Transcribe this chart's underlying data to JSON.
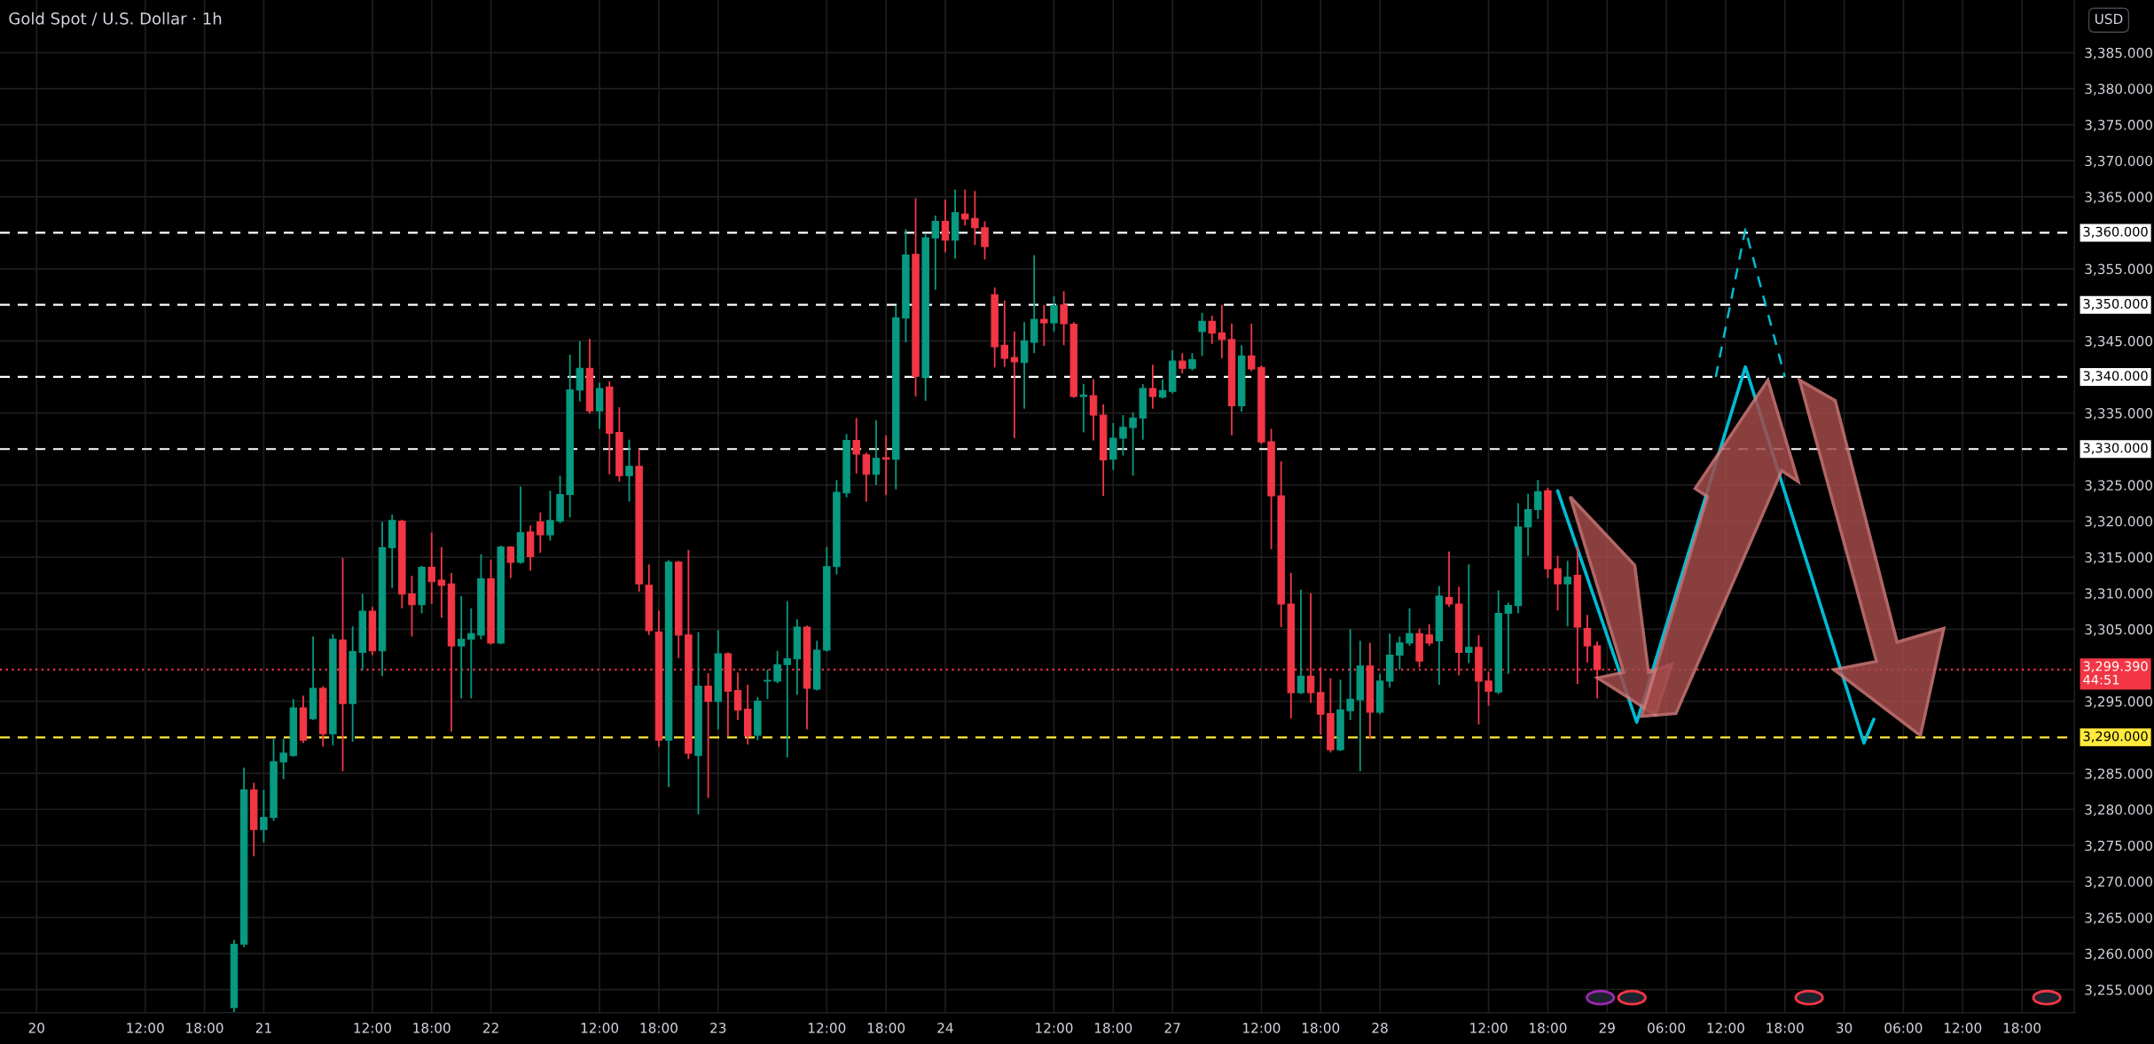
{
  "chart_data": {
    "type": "candlestick",
    "title": "Gold Spot / U.S. Dollar · 1h",
    "categories": [
      null,
      null,
      null,
      "20",
      null,
      null,
      null,
      null,
      null,
      null,
      null,
      null,
      null,
      null,
      "12:00",
      null,
      null,
      null,
      null,
      null,
      "18:00",
      null,
      null,
      null,
      null,
      null,
      "21",
      null,
      null,
      null,
      null,
      null,
      null,
      null,
      null,
      null,
      null,
      "12:00",
      null,
      null,
      null,
      null,
      null,
      "18:00",
      null,
      null,
      null,
      null,
      null,
      "22",
      null,
      null,
      null,
      null,
      null,
      null,
      null,
      null,
      null,
      null,
      "12:00",
      null,
      null,
      null,
      null,
      null,
      "18:00",
      null,
      null,
      null,
      null,
      null,
      "23",
      null,
      null,
      null,
      null,
      null,
      null,
      null,
      null,
      null,
      null,
      "12:00",
      null,
      null,
      null,
      null,
      null,
      "18:00",
      null,
      null,
      null,
      null,
      null,
      "24",
      null,
      null,
      null,
      null,
      null,
      null,
      null,
      null,
      null,
      null,
      "12:00",
      null,
      null,
      null,
      null,
      null,
      "18:00",
      null,
      null,
      null,
      null,
      null,
      "27",
      null,
      null,
      null,
      null,
      null,
      null,
      null,
      null,
      "12:00",
      null,
      null,
      null,
      null,
      null,
      "18:00",
      null,
      null,
      null,
      null,
      null,
      "28",
      null,
      null,
      null,
      null,
      null,
      null,
      null,
      null,
      null,
      null,
      "12:00",
      null,
      null,
      null,
      null,
      null,
      "18:00",
      null,
      null,
      null,
      null,
      null,
      "29",
      null,
      null,
      null,
      null,
      null,
      "06:00",
      null,
      null,
      null,
      null,
      null,
      "12:00",
      null,
      null,
      null,
      null,
      null,
      "18:00",
      null,
      null,
      null,
      null,
      null,
      "30",
      null,
      null,
      null,
      null,
      null,
      "06:00",
      null,
      null,
      null,
      null,
      null,
      "12:00",
      null,
      null,
      null,
      null,
      null,
      "18:00",
      null,
      null,
      null,
      null,
      null
    ],
    "series": [
      {
        "colors": [
          null,
          null,
          null,
          null,
          null,
          null,
          null,
          null,
          null,
          null,
          null,
          null,
          null,
          null,
          null,
          null,
          null,
          null,
          null,
          null,
          null,
          null,
          null,
          "#089981",
          "#089981",
          "#f23645",
          "#089981",
          "#089981",
          "#089981",
          "#089981",
          "#f23645",
          "#089981",
          "#f23645",
          "#089981",
          "#f23645",
          "#089981",
          "#089981",
          "#f23645",
          "#089981",
          "#089981",
          "#f23645",
          "#f23645",
          "#089981",
          "#f23645",
          "#f23645",
          "#f23645",
          "#089981",
          "#089981",
          "#089981",
          "#f23645",
          "#089981",
          "#f23645",
          "#089981",
          "#f23645",
          "#f23645",
          "#089981",
          "#089981",
          "#089981",
          "#089981",
          "#f23645",
          "#089981",
          "#f23645",
          "#f23645",
          "#089981",
          "#f23645",
          "#f23645",
          "#f23645",
          "#089981",
          "#f23645",
          "#f23645",
          "#089981",
          "#f23645",
          "#089981",
          "#f23645",
          "#f23645",
          "#f23645",
          "#089981",
          "#089981",
          "#089981",
          "#089981",
          "#089981",
          "#f23645",
          "#089981",
          "#089981",
          "#089981",
          "#089981",
          "#f23645",
          "#f23645",
          "#089981",
          "#f23645",
          "#089981",
          "#089981",
          "#f23645",
          "#089981",
          "#089981",
          "#f23645",
          "#089981",
          "#f23645",
          "#f23645",
          "#f23645",
          "#f23645",
          "#f23645",
          "#f23645",
          "#089981",
          "#089981",
          "#f23645",
          "#089981",
          "#f23645",
          "#f23645",
          "#089981",
          "#f23645",
          "#f23645",
          "#089981",
          "#089981",
          "#089981",
          "#089981",
          "#f23645",
          "#089981",
          "#089981",
          "#f23645",
          "#089981",
          "#089981",
          "#f23645",
          "#f23645",
          "#f23645",
          "#089981",
          "#f23645",
          "#f23645",
          "#f23645",
          "#f23645",
          "#f23645",
          "#089981",
          "#f23645",
          "#f23645",
          "#f23645",
          "#089981",
          "#089981",
          "#089981",
          "#f23645",
          "#089981",
          "#089981",
          "#089981",
          "#089981",
          "#f23645",
          "#f23645",
          "#089981",
          "#f23645",
          "#f23645",
          "#089981",
          "#f23645",
          "#f23645",
          "#089981",
          "#089981",
          "#089981",
          "#089981",
          "#089981",
          "#f23645",
          "#f23645",
          "#089981",
          "#f23645",
          "#f23645",
          "#f23645",
          null,
          null,
          null,
          null,
          null,
          null,
          null,
          null,
          null,
          null,
          null,
          null,
          null,
          null,
          null,
          null,
          null,
          null,
          null,
          null,
          null,
          null,
          null,
          null,
          null,
          null,
          null,
          null,
          null,
          null,
          null,
          null,
          null,
          null,
          null,
          null,
          null,
          null,
          null,
          null,
          null,
          null,
          null,
          null,
          null,
          null,
          null,
          null
        ],
        "ohlc": [
          null,
          null,
          null,
          null,
          null,
          null,
          null,
          null,
          null,
          null,
          null,
          null,
          null,
          null,
          null,
          null,
          null,
          null,
          null,
          null,
          null,
          null,
          null,
          [
            3252.5,
            3261.9,
            3251.9,
            3261.3
          ],
          [
            3261.3,
            3285.8,
            3260.9,
            3282.7
          ],
          [
            3282.7,
            3283.7,
            3273.5,
            3277.2
          ],
          [
            3277.2,
            3282.7,
            3275.4,
            3278.9
          ],
          [
            3278.9,
            3289.8,
            3278.4,
            3286.6
          ],
          [
            3286.6,
            3289.8,
            3284.2,
            3287.8
          ],
          [
            3287.5,
            3295.3,
            3287.3,
            3294.1
          ],
          [
            3294.1,
            3295.8,
            3289.2,
            3289.6
          ],
          [
            3292.6,
            3304.0,
            3292.4,
            3296.8
          ],
          [
            3296.8,
            3297.1,
            3288.7,
            3290.5
          ],
          [
            3290.5,
            3304.3,
            3288.9,
            3303.6
          ],
          [
            3303.5,
            3314.9,
            3285.3,
            3294.7
          ],
          [
            3294.7,
            3305.4,
            3289.4,
            3301.9
          ],
          [
            3301.8,
            3309.9,
            3299.3,
            3307.5
          ],
          [
            3307.5,
            3308.1,
            3301.4,
            3302.0
          ],
          [
            3302.0,
            3319.9,
            3298.5,
            3316.3
          ],
          [
            3316.3,
            3320.9,
            3310.7,
            3320.1
          ],
          [
            3320.0,
            3320.2,
            3307.9,
            3309.9
          ],
          [
            3309.9,
            3312.4,
            3304.0,
            3308.4
          ],
          [
            3308.4,
            3313.8,
            3307.2,
            3313.6
          ],
          [
            3313.6,
            3318.4,
            3308.5,
            3311.6
          ],
          [
            3311.8,
            3316.4,
            3306.6,
            3311.1
          ],
          [
            3311.3,
            3312.8,
            3290.8,
            3302.7
          ],
          [
            3302.7,
            3309.6,
            3295.4,
            3303.6
          ],
          [
            3303.6,
            3307.9,
            3295.4,
            3304.4
          ],
          [
            3304.2,
            3315.4,
            3303.6,
            3312.0
          ],
          [
            3312.0,
            3314.6,
            3302.9,
            3303.1
          ],
          [
            3303.1,
            3316.6,
            3302.9,
            3316.4
          ],
          [
            3316.4,
            3316.5,
            3312.1,
            3314.3
          ],
          [
            3314.3,
            3324.8,
            3314.1,
            3318.4
          ],
          [
            3318.5,
            3319.4,
            3313.1,
            3315.1
          ],
          [
            3319.9,
            3321.2,
            3315.6,
            3318.1
          ],
          [
            3318.1,
            3324.2,
            3317.3,
            3320.1
          ],
          [
            3320.0,
            3326.3,
            3319.7,
            3323.7
          ],
          [
            3323.7,
            3343.1,
            3320.5,
            3338.2
          ],
          [
            3338.2,
            3345.0,
            3336.6,
            3341.2
          ],
          [
            3341.2,
            3345.3,
            3334.9,
            3335.3
          ],
          [
            3335.3,
            3339.2,
            3332.8,
            3338.4
          ],
          [
            3338.6,
            3339.4,
            3326.5,
            3332.2
          ],
          [
            3332.3,
            3335.8,
            3325.5,
            3326.3
          ],
          [
            3326.3,
            3331.3,
            3322.7,
            3327.6
          ],
          [
            3327.6,
            3330.0,
            3310.2,
            3311.3
          ],
          [
            3311.1,
            3314.0,
            3304.2,
            3304.8
          ],
          [
            3304.6,
            3307.6,
            3288.7,
            3289.6
          ],
          [
            3289.6,
            3314.6,
            3283.1,
            3314.3
          ],
          [
            3314.3,
            3314.5,
            3301.0,
            3304.2
          ],
          [
            3304.2,
            3316.0,
            3287.0,
            3287.8
          ],
          [
            3287.5,
            3304.6,
            3279.3,
            3297.1
          ],
          [
            3297.1,
            3298.9,
            3281.6,
            3295.0
          ],
          [
            3295.0,
            3304.9,
            3291.1,
            3301.6
          ],
          [
            3301.6,
            3301.8,
            3290.2,
            3296.4
          ],
          [
            3296.5,
            3299.0,
            3292.4,
            3293.8
          ],
          [
            3293.9,
            3297.3,
            3289.0,
            3290.2
          ],
          [
            3290.3,
            3295.6,
            3289.6,
            3295.0
          ],
          [
            3297.8,
            3299.4,
            3295.3,
            3297.9
          ],
          [
            3297.8,
            3302.0,
            3297.5,
            3300.1
          ],
          [
            3300.1,
            3308.9,
            3287.2,
            3300.9
          ],
          [
            3300.9,
            3306.4,
            3295.9,
            3305.3
          ],
          [
            3305.3,
            3305.5,
            3291.1,
            3296.8
          ],
          [
            3296.7,
            3303.4,
            3296.5,
            3302.1
          ],
          [
            3302.1,
            3316.4,
            3301.9,
            3313.7
          ],
          [
            3313.7,
            3325.7,
            3312.6,
            3324.0
          ],
          [
            3323.9,
            3332.1,
            3323.3,
            3331.2
          ],
          [
            3331.2,
            3334.3,
            3326.6,
            3329.3
          ],
          [
            3329.2,
            3329.5,
            3322.7,
            3326.5
          ],
          [
            3326.5,
            3334.0,
            3325.0,
            3328.7
          ],
          [
            3328.8,
            3331.9,
            3323.6,
            3328.6
          ],
          [
            3328.6,
            3349.9,
            3324.4,
            3348.2
          ],
          [
            3348.2,
            3360.5,
            3344.8,
            3356.9
          ],
          [
            3357.0,
            3364.8,
            3337.3,
            3340.1
          ],
          [
            3339.9,
            3359.9,
            3336.7,
            3359.3
          ],
          [
            3359.3,
            3362.4,
            3352.1,
            3361.6
          ],
          [
            3361.6,
            3364.6,
            3357.3,
            3359.0
          ],
          [
            3359.0,
            3366.0,
            3356.4,
            3362.8
          ],
          [
            3362.6,
            3366.0,
            3361.0,
            3361.9
          ],
          [
            3362.0,
            3365.8,
            3358.3,
            3360.7
          ],
          [
            3360.7,
            3361.6,
            3356.3,
            3358.1
          ],
          [
            3351.4,
            3352.4,
            3341.3,
            3344.2
          ],
          [
            3344.4,
            3350.6,
            3341.4,
            3342.6
          ],
          [
            3342.7,
            3346.3,
            3331.5,
            3342.1
          ],
          [
            3342.0,
            3347.6,
            3335.6,
            3345.0
          ],
          [
            3344.8,
            3356.9,
            3343.3,
            3348.0
          ],
          [
            3348.0,
            3350.0,
            3344.3,
            3347.5
          ],
          [
            3347.5,
            3351.2,
            3346.3,
            3349.9
          ],
          [
            3350.0,
            3351.9,
            3344.4,
            3347.4
          ],
          [
            3347.3,
            3347.6,
            3337.1,
            3337.3
          ],
          [
            3337.3,
            3339.0,
            3332.3,
            3337.5
          ],
          [
            3337.4,
            3339.7,
            3331.2,
            3334.7
          ],
          [
            3334.7,
            3336.2,
            3323.5,
            3328.5
          ],
          [
            3328.6,
            3333.6,
            3327.1,
            3331.5
          ],
          [
            3331.5,
            3334.7,
            3329.1,
            3333.0
          ],
          [
            3333.0,
            3335.1,
            3326.3,
            3334.3
          ],
          [
            3334.3,
            3339.0,
            3331.3,
            3338.4
          ],
          [
            3338.4,
            3341.7,
            3335.6,
            3337.3
          ],
          [
            3337.2,
            3339.7,
            3337.0,
            3338.1
          ],
          [
            3338.0,
            3343.7,
            3337.7,
            3342.2
          ],
          [
            3342.2,
            3343.3,
            3340.5,
            3341.2
          ],
          [
            3341.2,
            3343.3,
            3340.9,
            3342.4
          ],
          [
            3346.3,
            3348.9,
            3342.9,
            3347.7
          ],
          [
            3347.7,
            3348.5,
            3344.6,
            3346.1
          ],
          [
            3346.1,
            3350.0,
            3342.6,
            3345.2
          ],
          [
            3345.2,
            3347.4,
            3331.9,
            3336.0
          ],
          [
            3336.0,
            3344.4,
            3335.2,
            3342.9
          ],
          [
            3342.9,
            3347.4,
            3340.8,
            3341.1
          ],
          [
            3341.3,
            3341.6,
            3330.7,
            3331.0
          ],
          [
            3331.0,
            3332.8,
            3316.1,
            3323.5
          ],
          [
            3323.5,
            3328.3,
            3305.3,
            3308.5
          ],
          [
            3308.5,
            3312.8,
            3292.6,
            3296.2
          ],
          [
            3296.2,
            3310.5,
            3296.0,
            3298.5
          ],
          [
            3298.5,
            3310.0,
            3294.8,
            3296.2
          ],
          [
            3296.2,
            3299.7,
            3290.4,
            3293.2
          ],
          [
            3293.3,
            3298.2,
            3287.9,
            3288.3
          ],
          [
            3288.3,
            3298.0,
            3288.1,
            3293.8
          ],
          [
            3293.7,
            3305.0,
            3292.4,
            3295.3
          ],
          [
            3295.2,
            3303.4,
            3285.3,
            3299.9
          ],
          [
            3299.9,
            3303.1,
            3289.8,
            3293.5
          ],
          [
            3293.5,
            3298.8,
            3293.2,
            3297.8
          ],
          [
            3297.8,
            3304.4,
            3296.9,
            3301.4
          ],
          [
            3301.4,
            3304.0,
            3299.4,
            3303.1
          ],
          [
            3303.1,
            3307.9,
            3302.7,
            3304.4
          ],
          [
            3304.4,
            3305.1,
            3299.7,
            3300.6
          ],
          [
            3304.2,
            3305.7,
            3302.7,
            3303.1
          ],
          [
            3303.4,
            3311.0,
            3297.3,
            3309.6
          ],
          [
            3309.4,
            3315.8,
            3308.1,
            3308.5
          ],
          [
            3308.5,
            3310.9,
            3298.6,
            3301.8
          ],
          [
            3301.8,
            3314.0,
            3300.3,
            3302.5
          ],
          [
            3302.5,
            3304.2,
            3291.8,
            3297.8
          ],
          [
            3297.8,
            3299.1,
            3294.4,
            3296.4
          ],
          [
            3296.3,
            3310.4,
            3296.0,
            3307.2
          ],
          [
            3307.2,
            3308.7,
            3298.8,
            3308.3
          ],
          [
            3308.3,
            3322.5,
            3307.2,
            3319.2
          ],
          [
            3319.2,
            3323.8,
            3315.2,
            3321.6
          ],
          [
            3321.6,
            3325.7,
            3320.3,
            3324.1
          ],
          [
            3324.2,
            3324.6,
            3312.1,
            3313.4
          ],
          [
            3313.4,
            3315.2,
            3307.6,
            3311.3
          ],
          [
            3311.3,
            3314.5,
            3305.4,
            3312.2
          ],
          [
            3312.5,
            3316.5,
            3297.4,
            3305.3
          ],
          [
            3305.1,
            3307.0,
            3300.4,
            3302.7
          ],
          [
            3302.7,
            3303.3,
            3295.4,
            3299.4
          ],
          null,
          null,
          null,
          null,
          null,
          null,
          null,
          null,
          null,
          null,
          null,
          null,
          null,
          null,
          null,
          null,
          null,
          null,
          null,
          null,
          null,
          null,
          null,
          null,
          null,
          null,
          null,
          null,
          null,
          null,
          null,
          null,
          null,
          null,
          null,
          null,
          null,
          null,
          null,
          null,
          null,
          null,
          null,
          null,
          null,
          null,
          null,
          null
        ]
      },
      {
        "type": "line",
        "color": "#00bcd4",
        "line_style": "solid",
        "values": [
          null,
          null,
          null,
          null,
          null,
          null,
          null,
          null,
          null,
          null,
          null,
          null,
          null,
          null,
          null,
          null,
          null,
          null,
          null,
          null,
          null,
          null,
          null,
          null,
          null,
          null,
          null,
          null,
          null,
          null,
          null,
          null,
          null,
          null,
          null,
          null,
          null,
          null,
          null,
          null,
          null,
          null,
          null,
          null,
          null,
          null,
          null,
          null,
          null,
          null,
          null,
          null,
          null,
          null,
          null,
          null,
          null,
          null,
          null,
          null,
          null,
          null,
          null,
          null,
          null,
          null,
          null,
          null,
          null,
          null,
          null,
          null,
          null,
          null,
          null,
          null,
          null,
          null,
          null,
          null,
          null,
          null,
          null,
          null,
          null,
          null,
          null,
          null,
          null,
          null,
          null,
          null,
          null,
          null,
          null,
          null,
          null,
          null,
          null,
          null,
          null,
          null,
          null,
          null,
          null,
          null,
          null,
          null,
          null,
          null,
          null,
          null,
          null,
          null,
          null,
          null,
          null,
          null,
          null,
          null,
          null,
          null,
          null,
          null,
          null,
          null,
          null,
          null,
          null,
          null,
          null,
          null,
          null,
          null,
          null,
          null,
          null,
          null,
          null,
          null,
          null,
          null,
          null,
          null,
          null,
          null,
          null,
          null,
          null,
          null,
          null,
          null,
          null,
          null,
          null,
          null,
          null,
          3324.2,
          null,
          null,
          null,
          null,
          null,
          null,
          null,
          3292.1,
          null,
          null,
          null,
          null,
          null,
          null,
          null,
          null,
          null,
          null,
          3341.4,
          null,
          null,
          null,
          null,
          null,
          null,
          null,
          null,
          null,
          null,
          null,
          3289.2,
          3292.5,
          null,
          null,
          null,
          null,
          null,
          null,
          null,
          null,
          null,
          null,
          null,
          null,
          null,
          null,
          null,
          null,
          null,
          null,
          null,
          null
        ]
      },
      {
        "type": "line",
        "color": "#00bcd4",
        "line_style": "dashed",
        "values": [
          null,
          null,
          null,
          null,
          null,
          null,
          null,
          null,
          null,
          null,
          null,
          null,
          null,
          null,
          null,
          null,
          null,
          null,
          null,
          null,
          null,
          null,
          null,
          null,
          null,
          null,
          null,
          null,
          null,
          null,
          null,
          null,
          null,
          null,
          null,
          null,
          null,
          null,
          null,
          null,
          null,
          null,
          null,
          null,
          null,
          null,
          null,
          null,
          null,
          null,
          null,
          null,
          null,
          null,
          null,
          null,
          null,
          null,
          null,
          null,
          null,
          null,
          null,
          null,
          null,
          null,
          null,
          null,
          null,
          null,
          null,
          null,
          null,
          null,
          null,
          null,
          null,
          null,
          null,
          null,
          null,
          null,
          null,
          null,
          null,
          null,
          null,
          null,
          null,
          null,
          null,
          null,
          null,
          null,
          null,
          null,
          null,
          null,
          null,
          null,
          null,
          null,
          null,
          null,
          null,
          null,
          null,
          null,
          null,
          null,
          null,
          null,
          null,
          null,
          null,
          null,
          null,
          null,
          null,
          null,
          null,
          null,
          null,
          null,
          null,
          null,
          null,
          null,
          null,
          null,
          null,
          null,
          null,
          null,
          null,
          null,
          null,
          null,
          null,
          null,
          null,
          null,
          null,
          null,
          null,
          null,
          null,
          null,
          null,
          null,
          null,
          null,
          null,
          null,
          null,
          null,
          null,
          null,
          null,
          null,
          null,
          null,
          null,
          null,
          null,
          null,
          null,
          null,
          null,
          null,
          null,
          null,
          null,
          3340,
          null,
          null,
          3360.5,
          null,
          null,
          null,
          3340,
          null,
          null,
          null,
          null,
          null,
          null,
          null,
          null,
          null,
          null,
          null,
          null,
          null,
          null,
          null,
          null,
          null,
          null,
          null,
          null,
          null,
          null,
          null,
          null,
          null,
          null,
          null,
          null,
          null
        ]
      }
    ],
    "ylim": [
      3251.8,
      3392.3
    ],
    "yticks": [
      {
        "value": 3255,
        "label": "3,255.000"
      },
      {
        "value": 3260,
        "label": "3,260.000"
      },
      {
        "value": 3265,
        "label": "3,265.000"
      },
      {
        "value": 3270,
        "label": "3,270.000"
      },
      {
        "value": 3275,
        "label": "3,275.000"
      },
      {
        "value": 3280,
        "label": "3,280.000"
      },
      {
        "value": 3285,
        "label": "3,285.000"
      },
      {
        "value": 3295,
        "label": "3,295.000"
      },
      {
        "value": 3305,
        "label": "3,305.000"
      },
      {
        "value": 3310,
        "label": "3,310.000"
      },
      {
        "value": 3315,
        "label": "3,315.000"
      },
      {
        "value": 3320,
        "label": "3,320.000"
      },
      {
        "value": 3325,
        "label": "3,325.000"
      },
      {
        "value": 3335,
        "label": "3,335.000"
      },
      {
        "value": 3345,
        "label": "3,345.000"
      },
      {
        "value": 3355,
        "label": "3,355.000"
      },
      {
        "value": 3365,
        "label": "3,365.000"
      },
      {
        "value": 3370,
        "label": "3,370.000"
      },
      {
        "value": 3375,
        "label": "3,375.000"
      },
      {
        "value": 3380,
        "label": "3,380.000"
      },
      {
        "value": 3385,
        "label": "3,385.000"
      }
    ],
    "ref_lines": [
      {
        "axis": "y",
        "value": 3360,
        "label": "3,360.000",
        "color": "#ffffff",
        "line_style": "dashed"
      },
      {
        "axis": "y",
        "value": 3350,
        "label": "3,350.000",
        "color": "#ffffff",
        "line_style": "dashed"
      },
      {
        "axis": "y",
        "value": 3340,
        "label": "3,340.000",
        "color": "#ffffff",
        "line_style": "dashed"
      },
      {
        "axis": "y",
        "value": 3330,
        "label": "3,330.000",
        "color": "#ffffff",
        "line_style": "dashed"
      },
      {
        "axis": "y",
        "value": 3290,
        "label": "3,290.000",
        "color": "#ffeb3b",
        "line_style": "dashed"
      },
      {
        "axis": "y",
        "value": 3299.39,
        "label": "3,299.390\n44:51",
        "color": "#f23645",
        "line_style": "dotted"
      }
    ],
    "annotations": [
      "USD"
    ],
    "grid": true
  }
}
